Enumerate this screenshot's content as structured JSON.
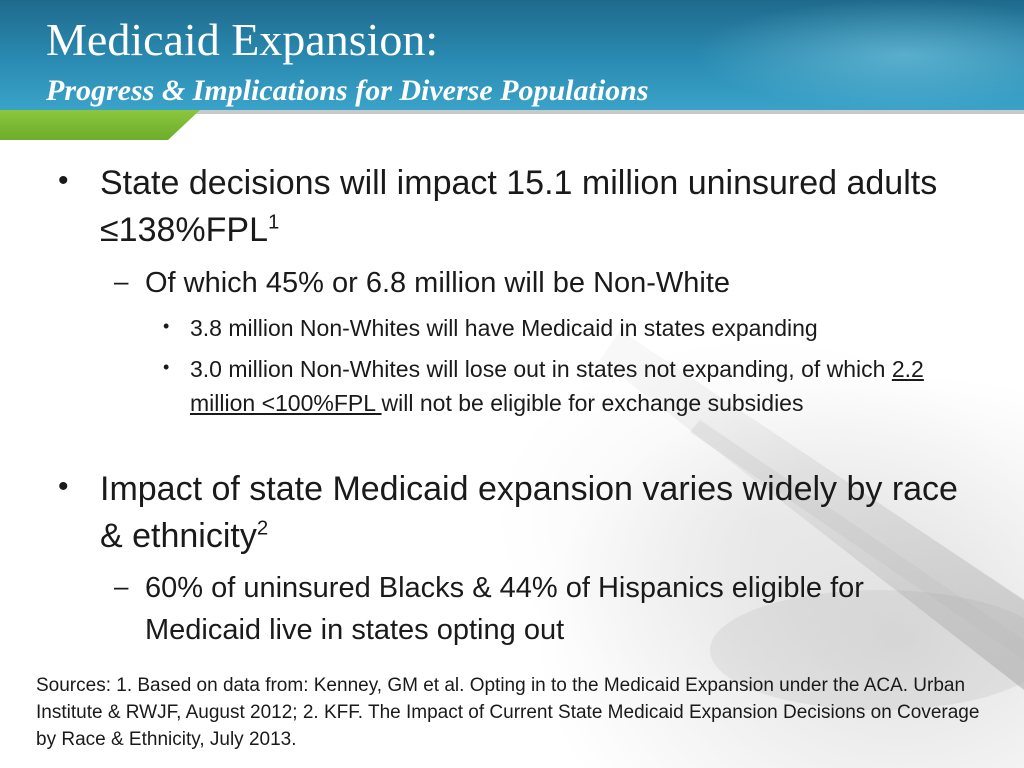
{
  "header": {
    "title": "Medicaid Expansion:",
    "subtitle": "Progress & Implications for Diverse Populations"
  },
  "content": {
    "bullet1": {
      "text": "State decisions will impact 15.1 million uninsured adults ≤138%FPL",
      "sup": "1",
      "sub": {
        "text": "Of which 45% or 6.8 million will be Non-White",
        "items": [
          {
            "text": "3.8 million Non-Whites will have Medicaid in states expanding"
          },
          {
            "text_before": "3.0 million Non-Whites will lose out in states not expanding, of which ",
            "text_underlined": "2.2 million <100%FPL ",
            "text_after": "will not be eligible for exchange subsidies"
          }
        ]
      }
    },
    "bullet2": {
      "text": "Impact of state Medicaid expansion varies widely by race & ethnicity",
      "sup": "2",
      "sub": {
        "text": "60% of uninsured Blacks & 44% of Hispanics eligible for Medicaid live in states opting out"
      }
    }
  },
  "sources": "Sources: 1. Based on data from: Kenney, GM et al. Opting in to the Medicaid Expansion under the ACA. Urban Institute & RWJF, August 2012; 2. KFF. The Impact of Current State Medicaid Expansion Decisions on Coverage by Race & Ethnicity, July 2013.",
  "bullet_glyphs": {
    "level1": "•",
    "level2": "–",
    "level3": "•"
  },
  "colors": {
    "header_blue": "#2a8bb2",
    "header_dark": "#1f6a8c",
    "accent_green": "#8cc63f",
    "text": "#1a1a1a"
  }
}
